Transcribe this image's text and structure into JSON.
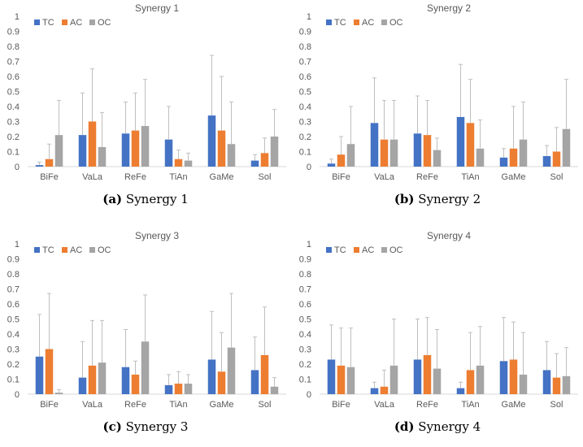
{
  "colors": {
    "TC": "#4472C4",
    "AC": "#ED7D31",
    "OC": "#A5A5A5",
    "error": "#BFBFBF",
    "axis": "#D9D9D9",
    "text": "#595959"
  },
  "chart_data": [
    {
      "type": "bar",
      "title": "Synergy 1",
      "caption_tag": "(a)",
      "caption_text": "Synergy 1",
      "categories": [
        "BiFe",
        "VaLa",
        "ReFe",
        "TiAn",
        "GaMe",
        "Sol"
      ],
      "ylim": [
        0,
        1
      ],
      "yticks": [
        "0",
        "0.1",
        "0.2",
        "0.3",
        "0.4",
        "0.5",
        "0.6",
        "0.7",
        "0.8",
        "0.9",
        "1"
      ],
      "legend": [
        "TC",
        "AC",
        "OC"
      ],
      "series": [
        {
          "name": "TC",
          "values": [
            0.01,
            0.21,
            0.22,
            0.18,
            0.34,
            0.04
          ],
          "errors": [
            0.02,
            0.28,
            0.21,
            0.22,
            0.4,
            0.04
          ]
        },
        {
          "name": "AC",
          "values": [
            0.05,
            0.3,
            0.24,
            0.05,
            0.24,
            0.09
          ],
          "errors": [
            0.1,
            0.35,
            0.25,
            0.06,
            0.36,
            0.1
          ]
        },
        {
          "name": "OC",
          "values": [
            0.21,
            0.13,
            0.27,
            0.04,
            0.15,
            0.2
          ],
          "errors": [
            0.23,
            0.23,
            0.31,
            0.05,
            0.28,
            0.18
          ]
        }
      ]
    },
    {
      "type": "bar",
      "title": "Synergy 2",
      "caption_tag": "(b)",
      "caption_text": "Synergy 2",
      "categories": [
        "BiFe",
        "VaLa",
        "ReFe",
        "TiAn",
        "GaMe",
        "Sol"
      ],
      "ylim": [
        0,
        1
      ],
      "yticks": [
        "0",
        "0.1",
        "0.2",
        "0.3",
        "0.4",
        "0.5",
        "0.6",
        "0.7",
        "0.8",
        "0.9",
        "1"
      ],
      "legend": [
        "TC",
        "AC",
        "OC"
      ],
      "series": [
        {
          "name": "TC",
          "values": [
            0.02,
            0.29,
            0.22,
            0.33,
            0.06,
            0.07
          ],
          "errors": [
            0.03,
            0.3,
            0.25,
            0.35,
            0.06,
            0.07
          ]
        },
        {
          "name": "AC",
          "values": [
            0.08,
            0.18,
            0.21,
            0.29,
            0.12,
            0.1
          ],
          "errors": [
            0.12,
            0.26,
            0.23,
            0.29,
            0.28,
            0.16
          ]
        },
        {
          "name": "OC",
          "values": [
            0.15,
            0.18,
            0.11,
            0.12,
            0.18,
            0.25
          ],
          "errors": [
            0.25,
            0.26,
            0.08,
            0.19,
            0.25,
            0.33
          ]
        }
      ]
    },
    {
      "type": "bar",
      "title": "Synergy 3",
      "caption_tag": "(c)",
      "caption_text": "Synergy 3",
      "categories": [
        "BiFe",
        "VaLa",
        "ReFe",
        "TiAn",
        "GaMe",
        "Sol"
      ],
      "ylim": [
        0,
        1
      ],
      "yticks": [
        "0",
        "0.1",
        "0.2",
        "0.3",
        "0.4",
        "0.5",
        "0.6",
        "0.7",
        "0.8",
        "0.9",
        "1"
      ],
      "legend": [
        "TC",
        "AC",
        "OC"
      ],
      "series": [
        {
          "name": "TC",
          "values": [
            0.25,
            0.11,
            0.18,
            0.06,
            0.23,
            0.16
          ],
          "errors": [
            0.28,
            0.24,
            0.25,
            0.07,
            0.32,
            0.22
          ]
        },
        {
          "name": "AC",
          "values": [
            0.3,
            0.19,
            0.13,
            0.07,
            0.15,
            0.26
          ],
          "errors": [
            0.37,
            0.3,
            0.09,
            0.08,
            0.26,
            0.32
          ]
        },
        {
          "name": "OC",
          "values": [
            0.01,
            0.21,
            0.35,
            0.07,
            0.31,
            0.05
          ],
          "errors": [
            0.02,
            0.28,
            0.31,
            0.06,
            0.36,
            0.06
          ]
        }
      ]
    },
    {
      "type": "bar",
      "title": "Synergy 4",
      "caption_tag": "(d)",
      "caption_text": "Synergy 4",
      "categories": [
        "BiFe",
        "VaLa",
        "ReFe",
        "TiAn",
        "GaMe",
        "Sol"
      ],
      "ylim": [
        0,
        1
      ],
      "yticks": [
        "0",
        "0.1",
        "0.2",
        "0.3",
        "0.4",
        "0.5",
        "0.6",
        "0.7",
        "0.8",
        "0.9",
        "1"
      ],
      "legend": [
        "TC",
        "AC",
        "OC"
      ],
      "series": [
        {
          "name": "TC",
          "values": [
            0.23,
            0.04,
            0.23,
            0.04,
            0.22,
            0.16
          ],
          "errors": [
            0.23,
            0.04,
            0.27,
            0.04,
            0.29,
            0.19
          ]
        },
        {
          "name": "AC",
          "values": [
            0.19,
            0.05,
            0.26,
            0.16,
            0.23,
            0.11
          ],
          "errors": [
            0.25,
            0.11,
            0.25,
            0.25,
            0.25,
            0.16
          ]
        },
        {
          "name": "OC",
          "values": [
            0.18,
            0.19,
            0.17,
            0.19,
            0.13,
            0.12
          ],
          "errors": [
            0.26,
            0.31,
            0.26,
            0.26,
            0.28,
            0.19
          ]
        }
      ]
    }
  ]
}
